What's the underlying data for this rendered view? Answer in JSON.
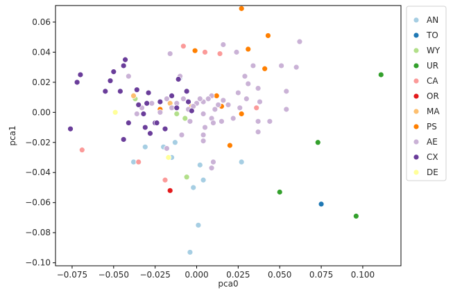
{
  "chart_data": {
    "type": "scatter",
    "xlabel": "pca0",
    "ylabel": "pca1",
    "xlim": [
      -0.085,
      0.123
    ],
    "ylim": [
      -0.102,
      0.071
    ],
    "xticks": [
      -0.075,
      -0.05,
      -0.025,
      0.0,
      0.025,
      0.05,
      0.075,
      0.1
    ],
    "xtick_labels": [
      "−0.075",
      "−0.050",
      "−0.025",
      "0.000",
      "0.025",
      "0.050",
      "0.075",
      "0.100"
    ],
    "yticks": [
      -0.1,
      -0.08,
      -0.06,
      -0.04,
      -0.02,
      0.0,
      0.02,
      0.04,
      0.06
    ],
    "ytick_labels": [
      "−0.10",
      "−0.08",
      "−0.06",
      "−0.04",
      "−0.02",
      "0.00",
      "0.02",
      "0.04",
      "0.06"
    ],
    "grid": false,
    "legend_position": "outside-right",
    "series": [
      {
        "name": "AN",
        "color": "#a6cee3",
        "points": [
          [
            -0.038,
            -0.033
          ],
          [
            -0.031,
            -0.023
          ],
          [
            -0.02,
            -0.023
          ],
          [
            -0.013,
            -0.02
          ],
          [
            -0.01,
            0.023
          ],
          [
            0.002,
            -0.035
          ],
          [
            0.004,
            -0.045
          ],
          [
            -0.002,
            -0.05
          ],
          [
            0.001,
            -0.075
          ],
          [
            -0.004,
            -0.093
          ],
          [
            0.027,
            -0.033
          ],
          [
            -0.015,
            -0.03
          ]
        ]
      },
      {
        "name": "TO",
        "color": "#1f78b4",
        "points": [
          [
            0.075,
            -0.061
          ]
        ]
      },
      {
        "name": "WY",
        "color": "#b2df8a",
        "points": [
          [
            -0.037,
            0.009
          ],
          [
            -0.012,
            -0.001
          ],
          [
            -0.007,
            -0.004
          ],
          [
            -0.006,
            -0.043
          ]
        ]
      },
      {
        "name": "UR",
        "color": "#33a02c",
        "points": [
          [
            0.111,
            0.025
          ],
          [
            0.073,
            -0.02
          ],
          [
            0.05,
            -0.053
          ],
          [
            0.096,
            -0.069
          ]
        ]
      },
      {
        "name": "CA",
        "color": "#fb9a99",
        "points": [
          [
            -0.069,
            -0.025
          ],
          [
            -0.035,
            -0.033
          ],
          [
            -0.019,
            -0.045
          ],
          [
            -0.008,
            0.044
          ],
          [
            0.005,
            0.04
          ],
          [
            0.014,
            0.039
          ],
          [
            0.036,
            0.003
          ]
        ]
      },
      {
        "name": "OR",
        "color": "#e31a1c",
        "points": [
          [
            -0.016,
            -0.052
          ]
        ]
      },
      {
        "name": "MA",
        "color": "#fdbf6f",
        "points": [
          [
            -0.038,
            0.011
          ],
          [
            -0.016,
            0.006
          ],
          [
            -0.003,
            0.004
          ]
        ]
      },
      {
        "name": "PS",
        "color": "#ff7f00",
        "points": [
          [
            0.027,
            0.069
          ],
          [
            0.043,
            0.051
          ],
          [
            0.031,
            0.042
          ],
          [
            -0.001,
            0.041
          ],
          [
            0.041,
            0.029
          ],
          [
            0.012,
            0.011
          ],
          [
            -0.022,
            0.002
          ],
          [
            0.005,
            -0.01
          ],
          [
            0.02,
            -0.022
          ],
          [
            0.015,
            0.004
          ],
          [
            0.027,
            -0.001
          ]
        ]
      },
      {
        "name": "AE",
        "color": "#cab2d6",
        "points": [
          [
            -0.016,
            0.039
          ],
          [
            -0.01,
            0.024
          ],
          [
            0.016,
            0.045
          ],
          [
            0.024,
            0.04
          ],
          [
            0.029,
            0.024
          ],
          [
            0.034,
            0.031
          ],
          [
            0.037,
            0.016
          ],
          [
            0.051,
            0.031
          ],
          [
            0.06,
            0.03
          ],
          [
            0.062,
            0.047
          ],
          [
            0.054,
            0.014
          ],
          [
            0.054,
            0.002
          ],
          [
            0.044,
            -0.006
          ],
          [
            0.037,
            -0.006
          ],
          [
            0.038,
            0.007
          ],
          [
            0.031,
            0.019
          ],
          [
            0.03,
            0.009
          ],
          [
            0.025,
            0.013
          ],
          [
            0.026,
            0.003
          ],
          [
            0.022,
            -0.004
          ],
          [
            0.019,
            0.005
          ],
          [
            0.016,
            0.008
          ],
          [
            0.013,
            0.005
          ],
          [
            0.011,
            0.002
          ],
          [
            0.009,
            0.011
          ],
          [
            0.007,
            0.009
          ],
          [
            0.004,
            0.007
          ],
          [
            0.002,
            0.009
          ],
          [
            0.0,
            0.006
          ],
          [
            -0.002,
            0.004
          ],
          [
            -0.005,
            0.002
          ],
          [
            -0.008,
            0.009
          ],
          [
            -0.012,
            0.006
          ],
          [
            -0.015,
            0.003
          ],
          [
            -0.018,
            0.009
          ],
          [
            -0.022,
            0.0
          ],
          [
            -0.027,
            0.006
          ],
          [
            -0.033,
            0.003
          ],
          [
            -0.036,
            -0.001
          ],
          [
            -0.041,
            0.024
          ],
          [
            0.009,
            -0.004
          ],
          [
            0.01,
            -0.007
          ],
          [
            0.005,
            -0.01
          ],
          [
            0.004,
            -0.015
          ],
          [
            0.004,
            -0.019
          ],
          [
            0.01,
            -0.033
          ],
          [
            0.009,
            -0.037
          ],
          [
            0.004,
            -0.001
          ],
          [
            0.015,
            -0.006
          ],
          [
            -0.004,
            -0.006
          ],
          [
            -0.018,
            -0.024
          ],
          [
            -0.009,
            -0.015
          ],
          [
            0.037,
            -0.013
          ]
        ]
      },
      {
        "name": "CX",
        "color": "#6a3d9a",
        "points": [
          [
            -0.076,
            -0.011
          ],
          [
            -0.072,
            0.02
          ],
          [
            -0.07,
            0.025
          ],
          [
            -0.055,
            0.014
          ],
          [
            -0.052,
            0.021
          ],
          [
            -0.05,
            0.027
          ],
          [
            -0.046,
            0.014
          ],
          [
            -0.044,
            0.031
          ],
          [
            -0.043,
            0.035
          ],
          [
            -0.044,
            -0.018
          ],
          [
            -0.041,
            -0.007
          ],
          [
            -0.036,
            0.015
          ],
          [
            -0.035,
            0.005
          ],
          [
            -0.032,
            -0.001
          ],
          [
            -0.03,
            0.006
          ],
          [
            -0.029,
            0.013
          ],
          [
            -0.031,
            -0.01
          ],
          [
            -0.028,
            -0.014
          ],
          [
            -0.025,
            -0.007
          ],
          [
            -0.022,
            0.007
          ],
          [
            -0.019,
            -0.011
          ],
          [
            -0.015,
            0.011
          ],
          [
            -0.012,
            0.003
          ],
          [
            -0.011,
            0.022
          ],
          [
            -0.006,
            0.014
          ],
          [
            -0.005,
            0.007
          ],
          [
            -0.003,
            0.001
          ],
          [
            -0.024,
            -0.007
          ]
        ]
      },
      {
        "name": "DE",
        "color": "#ffff99",
        "points": [
          [
            -0.049,
            0.0
          ],
          [
            -0.017,
            -0.03
          ]
        ]
      }
    ]
  }
}
